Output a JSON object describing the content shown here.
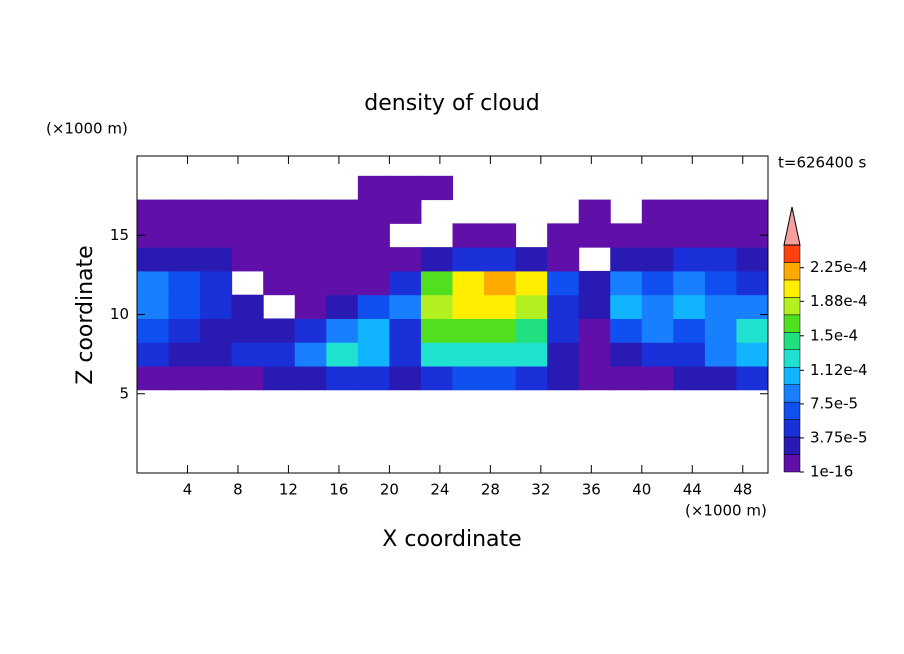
{
  "chart_data": {
    "type": "contourf",
    "title": "density of cloud",
    "x_label": "X coordinate",
    "y_label": "Z coordinate",
    "x_unit": "(×1000 m)",
    "y_unit": "(×1000 m)",
    "annotation": "t=626400 s",
    "xlim": [
      0,
      50
    ],
    "xticks": [
      4,
      8,
      12,
      16,
      20,
      24,
      28,
      32,
      36,
      40,
      44,
      48
    ],
    "ylim": [
      0,
      20
    ],
    "yticks": [
      5,
      10,
      15
    ],
    "x": [
      1.25,
      3.75,
      6.25,
      8.75,
      11.25,
      13.75,
      16.25,
      18.75,
      21.25,
      23.75,
      26.25,
      28.75,
      31.25,
      33.75,
      36.25,
      38.75,
      41.25,
      43.75,
      46.25,
      48.75
    ],
    "y": [
      6,
      7.5,
      9,
      10.5,
      12,
      13.5,
      15,
      16.5,
      18
    ],
    "z": [
      [
        5e-06,
        5e-06,
        5e-06,
        1e-05,
        2e-05,
        3e-05,
        4e-05,
        5e-05,
        3e-05,
        5e-05,
        6e-05,
        6e-05,
        5e-05,
        2e-05,
        1e-05,
        1e-05,
        1e-05,
        2e-05,
        3e-05,
        4e-05
      ],
      [
        4e-05,
        3e-05,
        2e-05,
        4e-05,
        5e-05,
        8e-05,
        0.00013,
        0.0001,
        4e-05,
        0.00012,
        0.00013,
        0.00013,
        0.00012,
        3e-05,
        1e-05,
        2e-05,
        5e-05,
        4e-05,
        8e-05,
        0.00011
      ],
      [
        6e-05,
        4e-05,
        3e-05,
        2e-05,
        3e-05,
        5e-05,
        9e-05,
        0.00011,
        5e-05,
        0.00016,
        0.00017,
        0.00017,
        0.00015,
        4e-05,
        1e-05,
        7e-05,
        8e-05,
        6e-05,
        9e-05,
        0.00012
      ],
      [
        9e-05,
        7e-05,
        5e-05,
        2e-05,
        null,
        1e-05,
        3e-05,
        7e-05,
        9e-05,
        0.00019,
        0.0002,
        0.000195,
        0.00018,
        5e-05,
        3e-05,
        0.00011,
        9e-05,
        0.00011,
        8e-05,
        9e-05
      ],
      [
        8e-05,
        6e-05,
        4e-05,
        null,
        5e-06,
        1e-05,
        5e-06,
        5e-06,
        5e-05,
        0.00016,
        0.00021,
        0.00022,
        0.0002,
        6e-05,
        2e-05,
        8e-05,
        7e-05,
        9e-05,
        6e-05,
        5e-05
      ],
      [
        2e-05,
        3e-05,
        2e-05,
        1e-05,
        5e-06,
        5e-06,
        5e-06,
        5e-06,
        1e-05,
        3e-05,
        5e-05,
        4e-05,
        2e-05,
        5e-06,
        null,
        2e-05,
        3e-05,
        5e-05,
        4e-05,
        3e-05
      ],
      [
        5e-06,
        1e-05,
        5e-06,
        5e-06,
        5e-06,
        5e-06,
        5e-06,
        5e-06,
        null,
        null,
        5e-06,
        5e-06,
        null,
        5e-06,
        5e-06,
        5e-06,
        5e-06,
        5e-06,
        5e-06,
        5e-06
      ],
      [
        5e-06,
        5e-06,
        5e-06,
        5e-06,
        5e-06,
        5e-06,
        5e-06,
        5e-06,
        5e-06,
        null,
        null,
        null,
        null,
        null,
        5e-06,
        null,
        5e-06,
        5e-06,
        5e-06,
        5e-06
      ],
      [
        null,
        null,
        null,
        null,
        null,
        null,
        null,
        1e-06,
        1e-06,
        1e-06,
        null,
        null,
        null,
        null,
        null,
        null,
        null,
        null,
        null,
        null
      ]
    ],
    "clim": [
      1e-16,
      0.00025
    ],
    "colors": [
      "#6010a8",
      "#2a1ab4",
      "#1a30d8",
      "#1050f0",
      "#1880ff",
      "#10b4ff",
      "#20e0d0",
      "#20e080",
      "#50e020",
      "#b4f020",
      "#ffee00",
      "#ffaa00",
      "#ff4010"
    ],
    "extend_color": "#f4a0a0",
    "colorbar_ticks": [
      {
        "value": 1e-16,
        "label": "1e-16"
      },
      {
        "value": 3.75e-05,
        "label": "3.75e-5"
      },
      {
        "value": 7.5e-05,
        "label": "7.5e-5"
      },
      {
        "value": 0.000112,
        "label": "1.12e-4"
      },
      {
        "value": 0.00015,
        "label": "1.5e-4"
      },
      {
        "value": 0.000188,
        "label": "1.88e-4"
      },
      {
        "value": 0.000225,
        "label": "2.25e-4"
      }
    ]
  }
}
